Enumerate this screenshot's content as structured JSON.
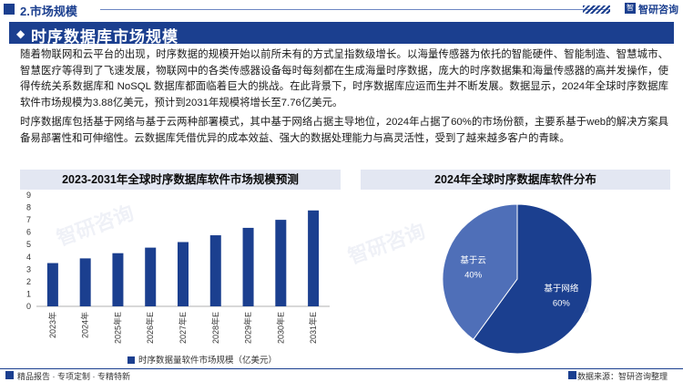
{
  "header": {
    "section_label": "2.市场规模",
    "logo_mark": "智",
    "logo_text": "智研咨询"
  },
  "banner": {
    "title": "时序数据库市场规模"
  },
  "body": {
    "paragraph1": "随着物联网和云平台的出现，时序数据的规模开始以前所未有的方式呈指数级增长。以海量传感器为依托的智能硬件、智能制造、智慧城市、智慧医疗等得到了飞速发展，物联网中的各类传感器设备每时每刻都在生成海量时序数据，庞大的时序数据集和海量传感器的高并发操作，使得传统关系数据库和 NoSQL 数据库都面临着巨大的挑战。在此背景下，时序数据库应运而生并不断发展。数据显示，2024年全球时序数据库软件市场规模为3.88亿美元，预计到2031年规模将增长至7.76亿美元。",
    "paragraph2": "时序数据库包括基于网络与基于云两种部署模式，其中基于网络占据主导地位，2024年占据了60%的市场份额，主要系基于web的解决方案具备易部署性和可伸缩性。云数据库凭借优异的成本效益、强大的数据处理能力与高灵活性，受到了越来越多客户的青睐。"
  },
  "watermark": "智研咨询",
  "chart_data": [
    {
      "type": "bar",
      "title": "2023-2031年全球时序数据库软件市场规模预测",
      "categories": [
        "2023年",
        "2024年",
        "2025年E",
        "2026年E",
        "2027年E",
        "2028年E",
        "2029年E",
        "2030年E",
        "2031年E"
      ],
      "series": [
        {
          "name": "时序数据量软件市场规模（亿美元）",
          "values": [
            3.5,
            3.88,
            4.3,
            4.75,
            5.2,
            5.75,
            6.35,
            7.0,
            7.76
          ]
        }
      ],
      "ylim": [
        0,
        9
      ],
      "yticks": [
        0,
        1,
        2,
        3,
        4,
        5,
        6,
        7,
        8,
        9
      ],
      "grid": false,
      "legend": "bottom",
      "color": "#1b3f8f"
    },
    {
      "type": "pie",
      "title": "2024年全球时序数据库软件分布",
      "slices": [
        {
          "label": "基于网络",
          "value": 60,
          "display": "60%",
          "color": "#1b3f8f"
        },
        {
          "label": "基于云",
          "value": 40,
          "display": "40%",
          "color": "#4f6fb8"
        }
      ],
      "legend": "none"
    }
  ],
  "footer": {
    "left_text": "精品报告 · 专项定制 · 专精特新",
    "right_text": "数据来源：智研咨询整理"
  }
}
